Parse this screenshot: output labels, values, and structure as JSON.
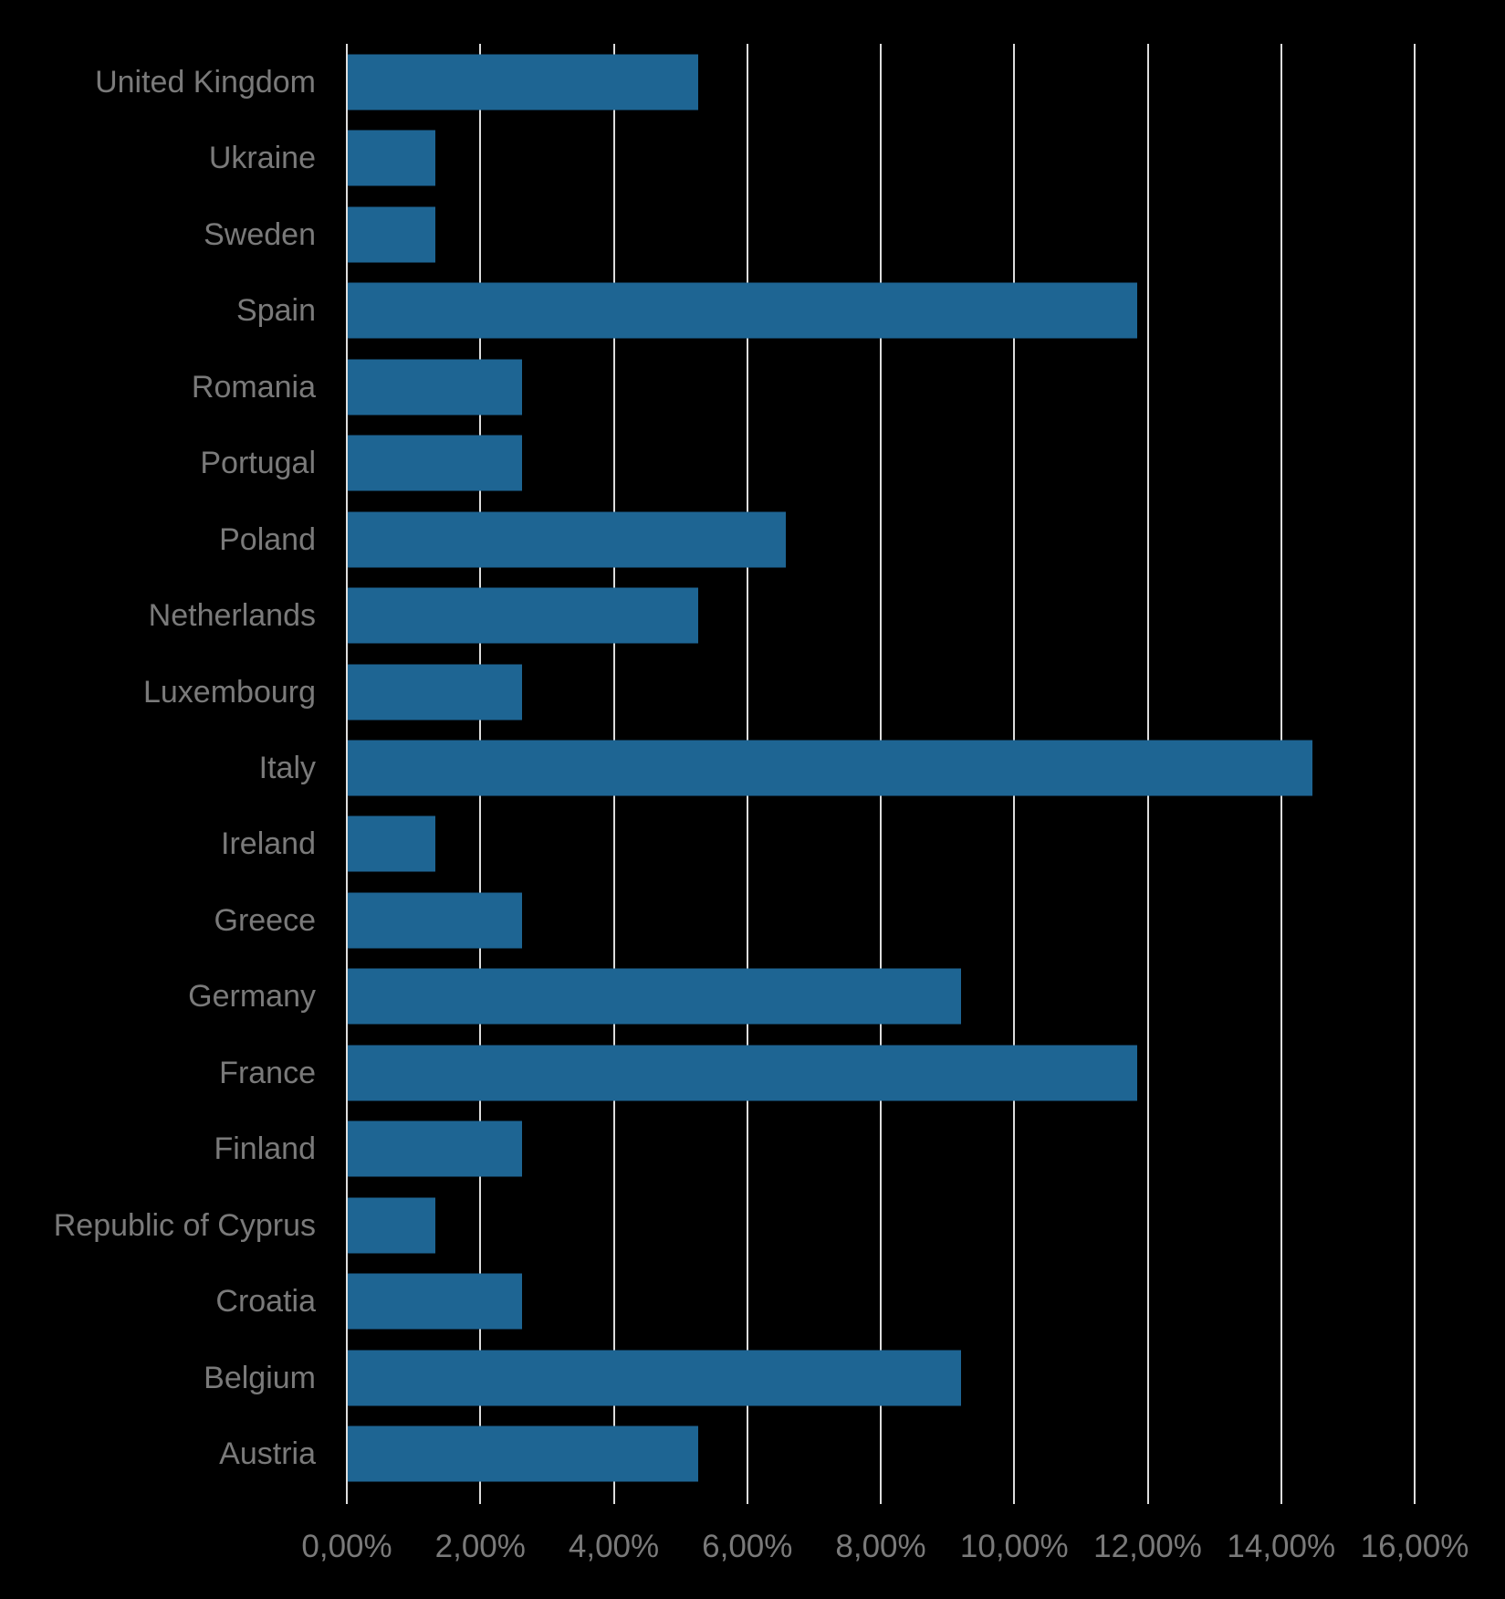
{
  "chart_data": {
    "type": "bar",
    "orientation": "horizontal",
    "title": "",
    "xlabel": "",
    "ylabel": "",
    "categories": [
      "United Kingdom",
      "Ukraine",
      "Sweden",
      "Spain",
      "Romania",
      "Portugal",
      "Poland",
      "Netherlands",
      "Luxembourg",
      "Italy",
      "Ireland",
      "Greece",
      "Germany",
      "France",
      "Finland",
      "Republic of Cyprus",
      "Croatia",
      "Belgium",
      "Austria"
    ],
    "values": [
      5.26,
      1.32,
      1.32,
      11.84,
      2.63,
      2.63,
      6.58,
      5.26,
      2.63,
      14.47,
      1.32,
      2.63,
      9.21,
      11.84,
      2.63,
      1.32,
      2.63,
      9.21,
      5.26
    ],
    "value_unit": "%",
    "x_ticks": [
      "0,00%",
      "2,00%",
      "4,00%",
      "6,00%",
      "8,00%",
      "10,00%",
      "12,00%",
      "14,00%",
      "16,00%"
    ],
    "xlim": [
      0,
      16
    ],
    "grid": true,
    "legend": "none",
    "colors": {
      "bar": "#1E6593",
      "labels": "#7A7A7A",
      "gridlines": "#DDDDDD",
      "background": "#000000"
    }
  }
}
